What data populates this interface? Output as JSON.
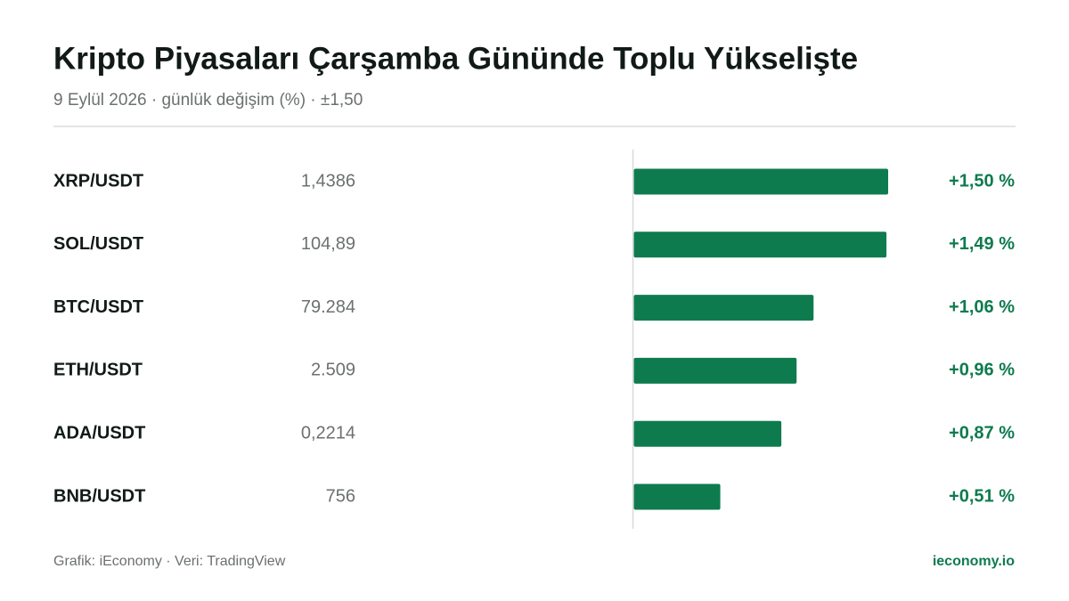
{
  "chart_data": {
    "type": "bar",
    "title": "Kripto Piyasaları Çarşamba Gününde Toplu Yükselişte",
    "subtitle": "9 Eylül 2026 · günlük değişim (%) · ±1,50",
    "categories": [
      "XRP/USDT",
      "SOL/USDT",
      "BTC/USDT",
      "ETH/USDT",
      "ADA/USDT",
      "BNB/USDT"
    ],
    "prices": [
      "1,4386",
      "104,89",
      "79.284",
      "2.509",
      "0,2214",
      "756"
    ],
    "values": [
      1.5,
      1.49,
      1.06,
      0.96,
      0.87,
      0.51
    ],
    "value_labels": [
      "+1,50 %",
      "+1,49 %",
      "+1,06 %",
      "+0,96 %",
      "+0,87 %",
      "+0,51 %"
    ],
    "color": "#0e7b4f",
    "xlim": [
      -1.5,
      1.5
    ],
    "source": "Grafik: iEconomy · Veri: TradingView",
    "brand": "ieconomy.io"
  }
}
